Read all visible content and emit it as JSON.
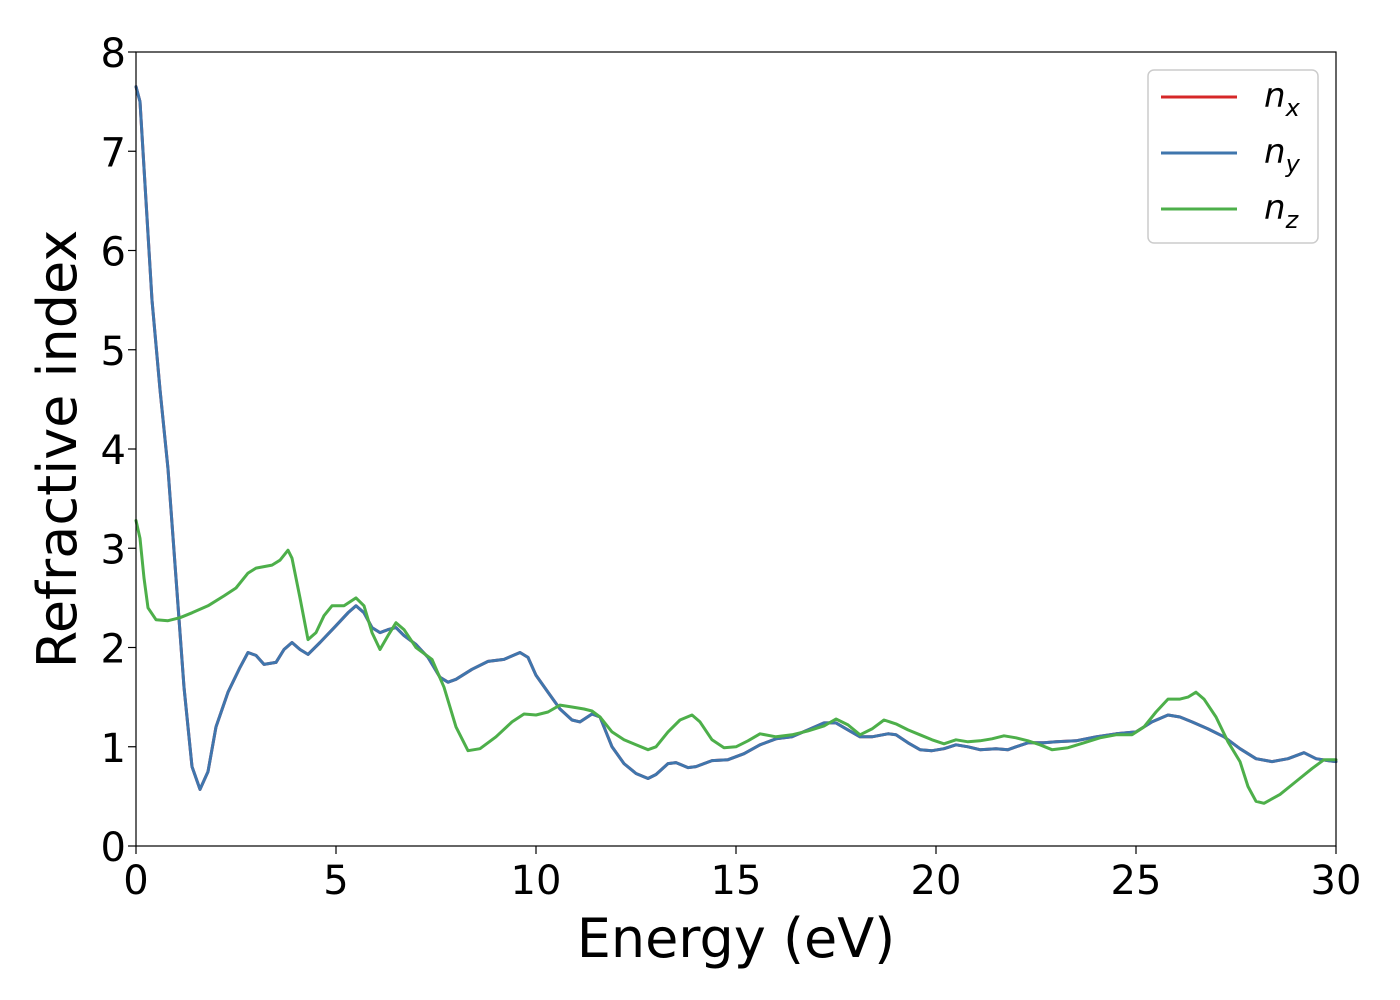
{
  "chart_data": {
    "type": "line",
    "xlabel": "Energy (eV)",
    "ylabel": "Refractive index",
    "xlim": [
      0,
      30
    ],
    "ylim": [
      0,
      8
    ],
    "xticks": [
      0,
      5,
      10,
      15,
      20,
      25,
      30
    ],
    "yticks": [
      0,
      1,
      2,
      3,
      4,
      5,
      6,
      7,
      8
    ],
    "grid": false,
    "legend_position": "top-right",
    "series": [
      {
        "name": "n",
        "sub": "x",
        "color": "#d62728",
        "points": [
          [
            0,
            7.65
          ],
          [
            0.1,
            7.5
          ],
          [
            0.25,
            6.5
          ],
          [
            0.4,
            5.5
          ],
          [
            0.6,
            4.6
          ],
          [
            0.8,
            3.8
          ],
          [
            1.0,
            2.7
          ],
          [
            1.2,
            1.6
          ],
          [
            1.4,
            0.8
          ],
          [
            1.6,
            0.57
          ],
          [
            1.8,
            0.75
          ],
          [
            2.0,
            1.2
          ],
          [
            2.3,
            1.55
          ],
          [
            2.6,
            1.8
          ],
          [
            2.8,
            1.95
          ],
          [
            3.0,
            1.92
          ],
          [
            3.2,
            1.83
          ],
          [
            3.5,
            1.85
          ],
          [
            3.7,
            1.98
          ],
          [
            3.9,
            2.05
          ],
          [
            4.1,
            1.98
          ],
          [
            4.3,
            1.93
          ],
          [
            4.6,
            2.05
          ],
          [
            5.0,
            2.22
          ],
          [
            5.3,
            2.35
          ],
          [
            5.5,
            2.42
          ],
          [
            5.7,
            2.35
          ],
          [
            5.9,
            2.2
          ],
          [
            6.1,
            2.15
          ],
          [
            6.3,
            2.18
          ],
          [
            6.5,
            2.2
          ],
          [
            6.7,
            2.12
          ],
          [
            7.0,
            2.03
          ],
          [
            7.3,
            1.9
          ],
          [
            7.6,
            1.7
          ],
          [
            7.8,
            1.65
          ],
          [
            8.0,
            1.68
          ],
          [
            8.4,
            1.78
          ],
          [
            8.8,
            1.86
          ],
          [
            9.2,
            1.88
          ],
          [
            9.6,
            1.95
          ],
          [
            9.8,
            1.9
          ],
          [
            10.0,
            1.72
          ],
          [
            10.3,
            1.55
          ],
          [
            10.6,
            1.38
          ],
          [
            10.9,
            1.27
          ],
          [
            11.1,
            1.25
          ],
          [
            11.4,
            1.33
          ],
          [
            11.6,
            1.3
          ],
          [
            11.9,
            1.0
          ],
          [
            12.2,
            0.83
          ],
          [
            12.5,
            0.73
          ],
          [
            12.8,
            0.68
          ],
          [
            13.0,
            0.72
          ],
          [
            13.3,
            0.83
          ],
          [
            13.5,
            0.84
          ],
          [
            13.8,
            0.79
          ],
          [
            14.0,
            0.8
          ],
          [
            14.4,
            0.86
          ],
          [
            14.8,
            0.87
          ],
          [
            15.2,
            0.93
          ],
          [
            15.6,
            1.02
          ],
          [
            16.0,
            1.08
          ],
          [
            16.4,
            1.1
          ],
          [
            16.8,
            1.17
          ],
          [
            17.2,
            1.24
          ],
          [
            17.5,
            1.24
          ],
          [
            17.8,
            1.17
          ],
          [
            18.1,
            1.1
          ],
          [
            18.4,
            1.1
          ],
          [
            18.8,
            1.13
          ],
          [
            19.0,
            1.12
          ],
          [
            19.3,
            1.04
          ],
          [
            19.6,
            0.97
          ],
          [
            19.9,
            0.96
          ],
          [
            20.2,
            0.98
          ],
          [
            20.5,
            1.02
          ],
          [
            20.8,
            1.0
          ],
          [
            21.1,
            0.97
          ],
          [
            21.5,
            0.98
          ],
          [
            21.8,
            0.97
          ],
          [
            22.0,
            1.0
          ],
          [
            22.3,
            1.04
          ],
          [
            22.7,
            1.04
          ],
          [
            23.0,
            1.05
          ],
          [
            23.5,
            1.06
          ],
          [
            24.0,
            1.1
          ],
          [
            24.5,
            1.13
          ],
          [
            25.0,
            1.15
          ],
          [
            25.4,
            1.25
          ],
          [
            25.8,
            1.32
          ],
          [
            26.1,
            1.3
          ],
          [
            26.4,
            1.25
          ],
          [
            26.8,
            1.18
          ],
          [
            27.2,
            1.1
          ],
          [
            27.6,
            0.98
          ],
          [
            28.0,
            0.88
          ],
          [
            28.4,
            0.85
          ],
          [
            28.8,
            0.88
          ],
          [
            29.2,
            0.94
          ],
          [
            29.5,
            0.88
          ],
          [
            29.8,
            0.86
          ],
          [
            30.0,
            0.85
          ]
        ]
      },
      {
        "name": "n",
        "sub": "y",
        "color": "#3f76ad",
        "points": [
          [
            0,
            7.65
          ],
          [
            0.1,
            7.5
          ],
          [
            0.25,
            6.5
          ],
          [
            0.4,
            5.5
          ],
          [
            0.6,
            4.6
          ],
          [
            0.8,
            3.8
          ],
          [
            1.0,
            2.7
          ],
          [
            1.2,
            1.6
          ],
          [
            1.4,
            0.8
          ],
          [
            1.6,
            0.57
          ],
          [
            1.8,
            0.75
          ],
          [
            2.0,
            1.2
          ],
          [
            2.3,
            1.55
          ],
          [
            2.6,
            1.8
          ],
          [
            2.8,
            1.95
          ],
          [
            3.0,
            1.92
          ],
          [
            3.2,
            1.83
          ],
          [
            3.5,
            1.85
          ],
          [
            3.7,
            1.98
          ],
          [
            3.9,
            2.05
          ],
          [
            4.1,
            1.98
          ],
          [
            4.3,
            1.93
          ],
          [
            4.6,
            2.05
          ],
          [
            5.0,
            2.22
          ],
          [
            5.3,
            2.35
          ],
          [
            5.5,
            2.42
          ],
          [
            5.7,
            2.35
          ],
          [
            5.9,
            2.2
          ],
          [
            6.1,
            2.15
          ],
          [
            6.3,
            2.18
          ],
          [
            6.5,
            2.2
          ],
          [
            6.7,
            2.12
          ],
          [
            7.0,
            2.03
          ],
          [
            7.3,
            1.9
          ],
          [
            7.6,
            1.7
          ],
          [
            7.8,
            1.65
          ],
          [
            8.0,
            1.68
          ],
          [
            8.4,
            1.78
          ],
          [
            8.8,
            1.86
          ],
          [
            9.2,
            1.88
          ],
          [
            9.6,
            1.95
          ],
          [
            9.8,
            1.9
          ],
          [
            10.0,
            1.72
          ],
          [
            10.3,
            1.55
          ],
          [
            10.6,
            1.38
          ],
          [
            10.9,
            1.27
          ],
          [
            11.1,
            1.25
          ],
          [
            11.4,
            1.33
          ],
          [
            11.6,
            1.3
          ],
          [
            11.9,
            1.0
          ],
          [
            12.2,
            0.83
          ],
          [
            12.5,
            0.73
          ],
          [
            12.8,
            0.68
          ],
          [
            13.0,
            0.72
          ],
          [
            13.3,
            0.83
          ],
          [
            13.5,
            0.84
          ],
          [
            13.8,
            0.79
          ],
          [
            14.0,
            0.8
          ],
          [
            14.4,
            0.86
          ],
          [
            14.8,
            0.87
          ],
          [
            15.2,
            0.93
          ],
          [
            15.6,
            1.02
          ],
          [
            16.0,
            1.08
          ],
          [
            16.4,
            1.1
          ],
          [
            16.8,
            1.17
          ],
          [
            17.2,
            1.24
          ],
          [
            17.5,
            1.24
          ],
          [
            17.8,
            1.17
          ],
          [
            18.1,
            1.1
          ],
          [
            18.4,
            1.1
          ],
          [
            18.8,
            1.13
          ],
          [
            19.0,
            1.12
          ],
          [
            19.3,
            1.04
          ],
          [
            19.6,
            0.97
          ],
          [
            19.9,
            0.96
          ],
          [
            20.2,
            0.98
          ],
          [
            20.5,
            1.02
          ],
          [
            20.8,
            1.0
          ],
          [
            21.1,
            0.97
          ],
          [
            21.5,
            0.98
          ],
          [
            21.8,
            0.97
          ],
          [
            22.0,
            1.0
          ],
          [
            22.3,
            1.04
          ],
          [
            22.7,
            1.04
          ],
          [
            23.0,
            1.05
          ],
          [
            23.5,
            1.06
          ],
          [
            24.0,
            1.1
          ],
          [
            24.5,
            1.13
          ],
          [
            25.0,
            1.15
          ],
          [
            25.4,
            1.25
          ],
          [
            25.8,
            1.32
          ],
          [
            26.1,
            1.3
          ],
          [
            26.4,
            1.25
          ],
          [
            26.8,
            1.18
          ],
          [
            27.2,
            1.1
          ],
          [
            27.6,
            0.98
          ],
          [
            28.0,
            0.88
          ],
          [
            28.4,
            0.85
          ],
          [
            28.8,
            0.88
          ],
          [
            29.2,
            0.94
          ],
          [
            29.5,
            0.88
          ],
          [
            29.8,
            0.86
          ],
          [
            30.0,
            0.85
          ]
        ]
      },
      {
        "name": "n",
        "sub": "z",
        "color": "#4daf4a",
        "points": [
          [
            0,
            3.28
          ],
          [
            0.1,
            3.1
          ],
          [
            0.2,
            2.7
          ],
          [
            0.3,
            2.4
          ],
          [
            0.5,
            2.28
          ],
          [
            0.8,
            2.27
          ],
          [
            1.1,
            2.3
          ],
          [
            1.4,
            2.35
          ],
          [
            1.8,
            2.42
          ],
          [
            2.2,
            2.52
          ],
          [
            2.5,
            2.6
          ],
          [
            2.8,
            2.75
          ],
          [
            3.0,
            2.8
          ],
          [
            3.4,
            2.83
          ],
          [
            3.6,
            2.88
          ],
          [
            3.8,
            2.98
          ],
          [
            3.9,
            2.9
          ],
          [
            4.1,
            2.5
          ],
          [
            4.3,
            2.08
          ],
          [
            4.5,
            2.15
          ],
          [
            4.7,
            2.32
          ],
          [
            4.9,
            2.42
          ],
          [
            5.2,
            2.42
          ],
          [
            5.5,
            2.5
          ],
          [
            5.7,
            2.42
          ],
          [
            5.9,
            2.15
          ],
          [
            6.1,
            1.98
          ],
          [
            6.3,
            2.12
          ],
          [
            6.5,
            2.25
          ],
          [
            6.7,
            2.18
          ],
          [
            7.0,
            2.0
          ],
          [
            7.4,
            1.88
          ],
          [
            7.7,
            1.6
          ],
          [
            8.0,
            1.2
          ],
          [
            8.3,
            0.96
          ],
          [
            8.6,
            0.98
          ],
          [
            9.0,
            1.1
          ],
          [
            9.4,
            1.25
          ],
          [
            9.7,
            1.33
          ],
          [
            10.0,
            1.32
          ],
          [
            10.3,
            1.35
          ],
          [
            10.6,
            1.42
          ],
          [
            10.9,
            1.4
          ],
          [
            11.2,
            1.38
          ],
          [
            11.4,
            1.36
          ],
          [
            11.6,
            1.3
          ],
          [
            11.9,
            1.15
          ],
          [
            12.2,
            1.07
          ],
          [
            12.5,
            1.02
          ],
          [
            12.8,
            0.97
          ],
          [
            13.0,
            1.0
          ],
          [
            13.3,
            1.15
          ],
          [
            13.6,
            1.27
          ],
          [
            13.9,
            1.32
          ],
          [
            14.1,
            1.25
          ],
          [
            14.4,
            1.07
          ],
          [
            14.7,
            0.99
          ],
          [
            15.0,
            1.0
          ],
          [
            15.3,
            1.06
          ],
          [
            15.6,
            1.13
          ],
          [
            16.0,
            1.1
          ],
          [
            16.4,
            1.12
          ],
          [
            16.8,
            1.16
          ],
          [
            17.2,
            1.21
          ],
          [
            17.5,
            1.28
          ],
          [
            17.8,
            1.22
          ],
          [
            18.1,
            1.12
          ],
          [
            18.4,
            1.18
          ],
          [
            18.7,
            1.27
          ],
          [
            19.0,
            1.23
          ],
          [
            19.3,
            1.17
          ],
          [
            19.6,
            1.12
          ],
          [
            19.9,
            1.07
          ],
          [
            20.2,
            1.03
          ],
          [
            20.5,
            1.07
          ],
          [
            20.8,
            1.05
          ],
          [
            21.1,
            1.06
          ],
          [
            21.4,
            1.08
          ],
          [
            21.7,
            1.11
          ],
          [
            22.0,
            1.09
          ],
          [
            22.3,
            1.06
          ],
          [
            22.6,
            1.02
          ],
          [
            22.9,
            0.97
          ],
          [
            23.3,
            0.99
          ],
          [
            23.7,
            1.04
          ],
          [
            24.1,
            1.09
          ],
          [
            24.5,
            1.12
          ],
          [
            24.9,
            1.12
          ],
          [
            25.2,
            1.2
          ],
          [
            25.5,
            1.35
          ],
          [
            25.8,
            1.48
          ],
          [
            26.1,
            1.48
          ],
          [
            26.3,
            1.5
          ],
          [
            26.5,
            1.55
          ],
          [
            26.7,
            1.48
          ],
          [
            27.0,
            1.3
          ],
          [
            27.3,
            1.05
          ],
          [
            27.6,
            0.85
          ],
          [
            27.8,
            0.6
          ],
          [
            28.0,
            0.45
          ],
          [
            28.2,
            0.43
          ],
          [
            28.6,
            0.52
          ],
          [
            29.0,
            0.65
          ],
          [
            29.4,
            0.78
          ],
          [
            29.7,
            0.87
          ],
          [
            30.0,
            0.87
          ]
        ]
      }
    ]
  }
}
